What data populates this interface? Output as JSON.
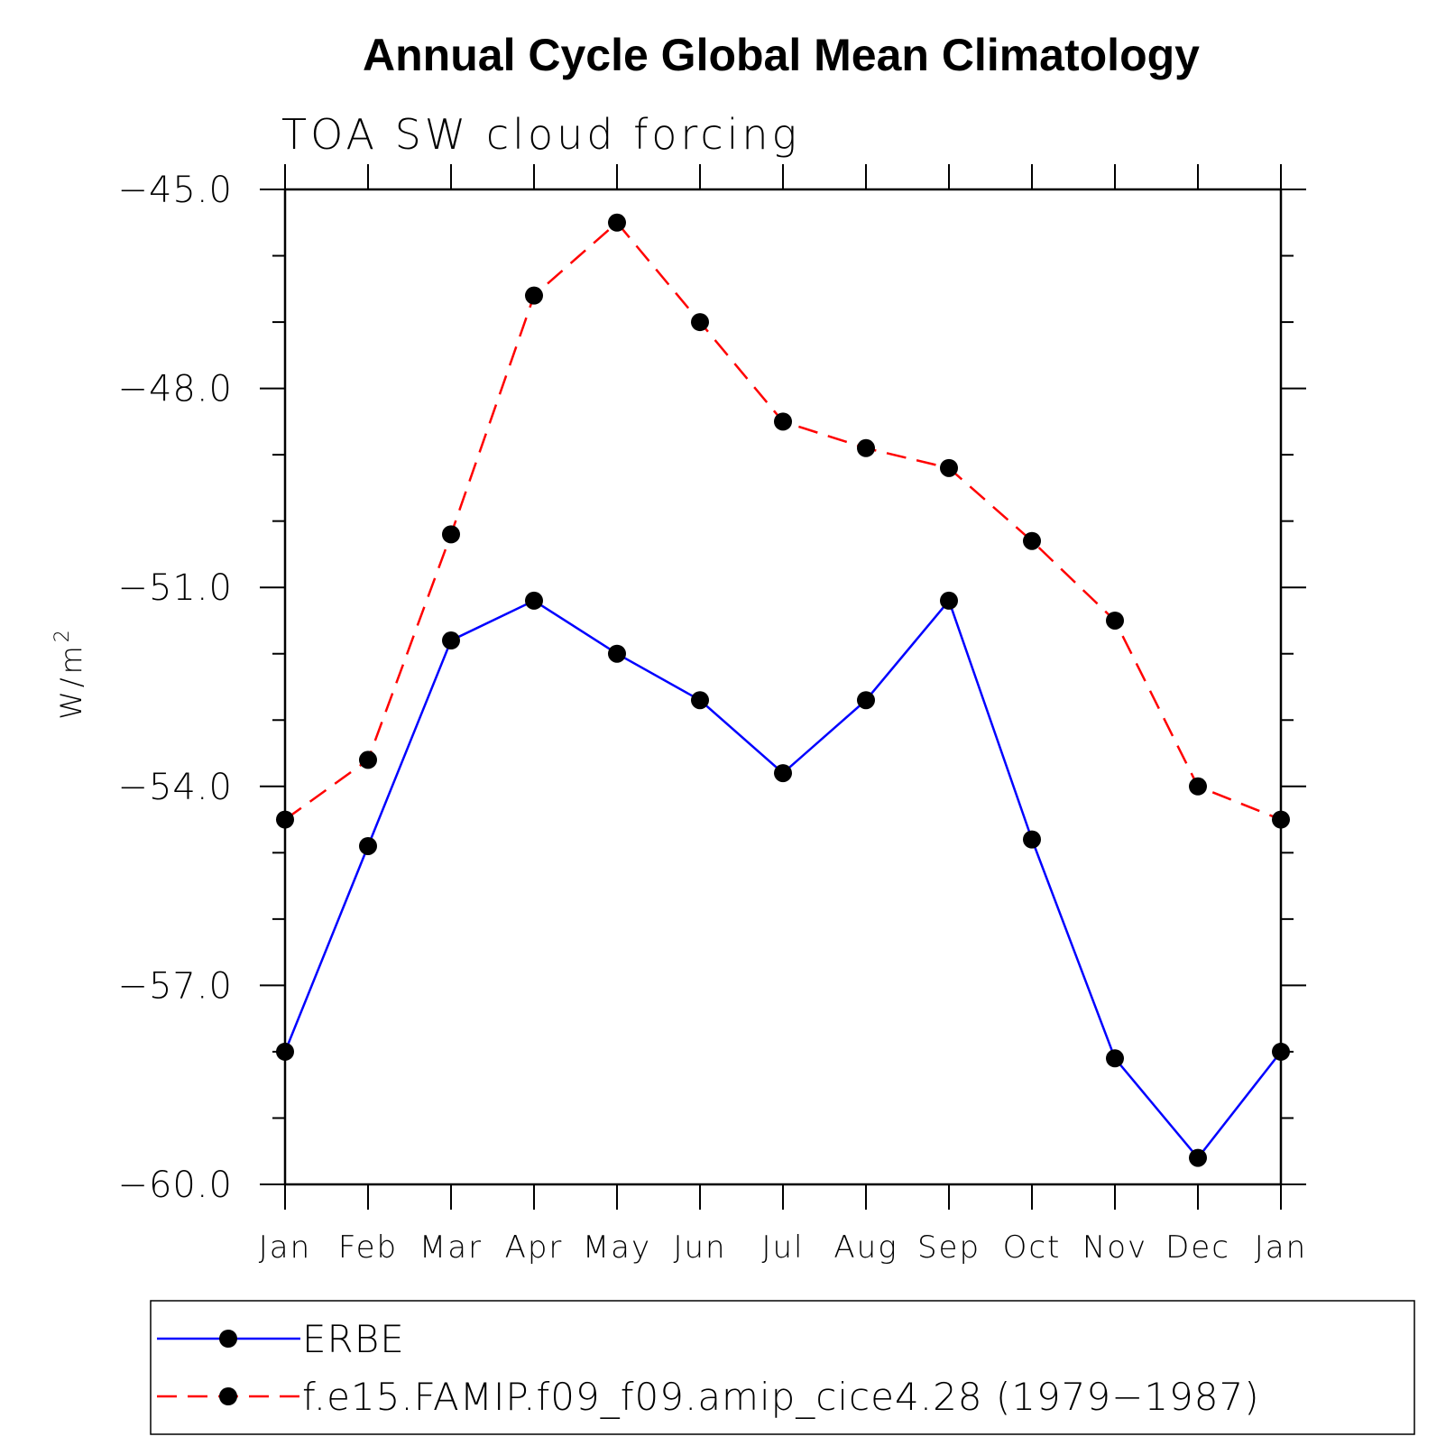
{
  "chart_data": {
    "type": "line",
    "title": "Annual Cycle Global Mean Climatology",
    "subtitle": "TOA SW cloud forcing",
    "ylabel": "W/m",
    "ylabel_superscript": "2",
    "xlabel": "",
    "ylim": [
      -60.0,
      -45.0
    ],
    "yticks": [
      -45.0,
      -48.0,
      -51.0,
      -54.0,
      -57.0,
      -60.0
    ],
    "ytick_labels": [
      "−45.0",
      "−48.0",
      "−51.0",
      "−54.0",
      "−57.0",
      "−60.0"
    ],
    "categories": [
      "Jan",
      "Feb",
      "Mar",
      "Apr",
      "May",
      "Jun",
      "Jul",
      "Aug",
      "Sep",
      "Oct",
      "Nov",
      "Dec",
      "Jan"
    ],
    "grid": false,
    "legend_position": "bottom",
    "series": [
      {
        "name": "ERBE",
        "color": "#0000ff",
        "dash": "solid",
        "values": [
          -58.0,
          -54.9,
          -51.8,
          -51.2,
          -52.0,
          -52.7,
          -53.8,
          -52.7,
          -51.2,
          -54.8,
          -58.1,
          -59.6,
          -58.0
        ]
      },
      {
        "name": "f.e15.FAMIP.f09_f09.amip_cice4.28 (1979−1987)",
        "color": "#ff0000",
        "dash": "dashed",
        "values": [
          -54.5,
          -53.6,
          -50.2,
          -46.6,
          -45.5,
          -47.0,
          -48.5,
          -48.9,
          -49.2,
          -50.3,
          -51.5,
          -54.0,
          -54.5
        ]
      }
    ]
  }
}
